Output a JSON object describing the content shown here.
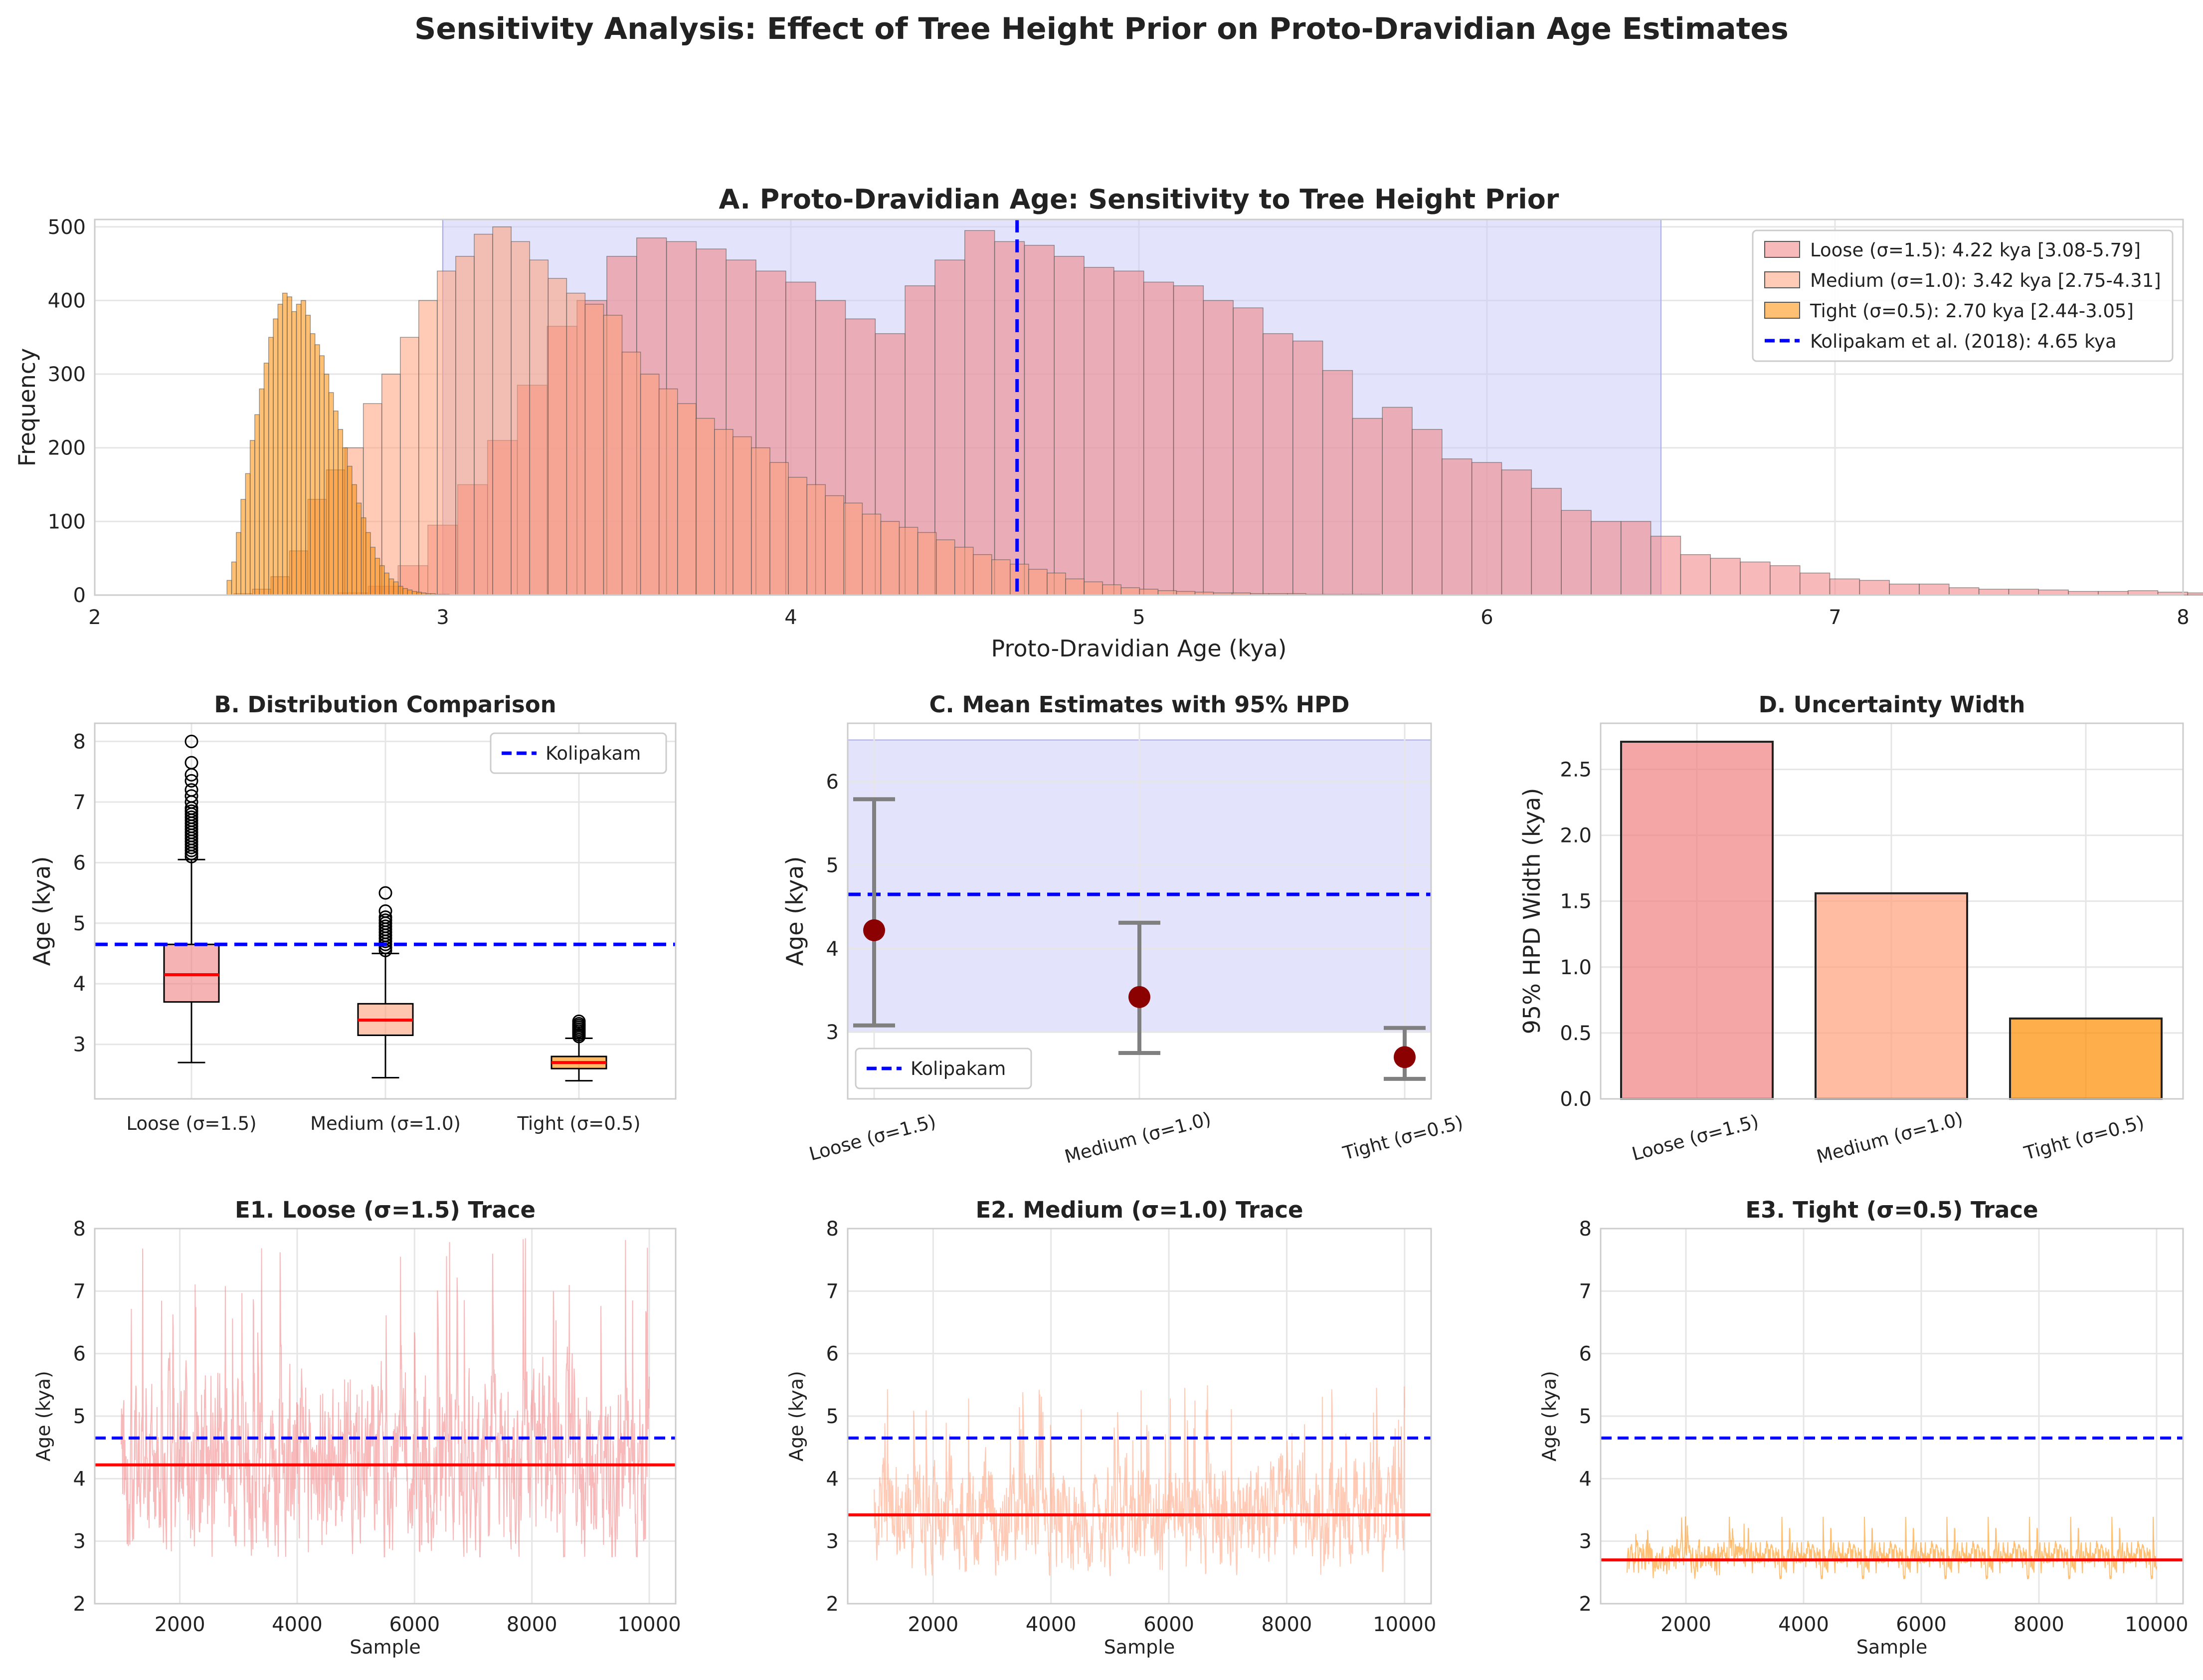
{
  "figure": {
    "suptitle": "Sensitivity Analysis: Effect of Tree Height Prior on Proto-Dravidian Age Estimates"
  },
  "colors": {
    "loose": "#f08080",
    "medium": "#ffa07a",
    "tight": "#ff8c00",
    "reference": "#0000ff",
    "mean_line": "#ff0000",
    "error_bar": "#808080",
    "marker": "#8b0000",
    "hpd_band": "#c8c8f8"
  },
  "chart_data": [
    {
      "id": "A",
      "type": "histogram",
      "title": "A. Proto-Dravidian Age: Sensitivity to Tree Height Prior",
      "xlabel": "Proto-Dravidian Age (kya)",
      "ylabel": "Frequency",
      "xlim": [
        2,
        8
      ],
      "ylim": [
        0,
        510
      ],
      "xticks": [
        "2",
        "3",
        "4",
        "5",
        "6",
        "7",
        "8"
      ],
      "yticks": [
        "0",
        "100",
        "200",
        "300",
        "400",
        "500"
      ],
      "hpd_band": [
        3.0,
        6.5
      ],
      "reference_line": 4.65,
      "legend_position": "top-right",
      "legend": [
        "Loose (σ=1.5): 4.22 kya [3.08-5.79]",
        "Medium (σ=1.0): 3.42 kya [2.75-4.31]",
        "Tight (σ=0.5): 2.70 kya [2.44-3.05]",
        "Kolipakam et al. (2018): 4.65 kya"
      ],
      "series": [
        {
          "name": "Loose (σ=1.5)",
          "bin_start": 2.7,
          "bin_width": 0.0857,
          "counts": [
            3,
            12,
            40,
            95,
            150,
            210,
            285,
            365,
            400,
            460,
            485,
            480,
            470,
            455,
            440,
            425,
            400,
            375,
            355,
            420,
            455,
            495,
            480,
            475,
            460,
            445,
            440,
            425,
            420,
            400,
            390,
            355,
            345,
            305,
            240,
            255,
            225,
            185,
            180,
            170,
            145,
            115,
            100,
            100,
            80,
            55,
            50,
            45,
            40,
            30,
            22,
            20,
            15,
            15,
            10,
            8,
            8,
            7,
            5,
            5,
            6,
            4,
            3,
            3,
            2,
            2,
            2,
            2,
            1,
            1
          ]
        },
        {
          "name": "Medium (σ=1.0)",
          "bin_start": 2.4,
          "bin_width": 0.0531,
          "counts": [
            2,
            8,
            25,
            60,
            130,
            170,
            200,
            260,
            300,
            350,
            400,
            440,
            460,
            490,
            500,
            480,
            455,
            430,
            410,
            395,
            380,
            330,
            300,
            280,
            260,
            240,
            225,
            215,
            200,
            180,
            160,
            150,
            135,
            125,
            110,
            100,
            92,
            85,
            75,
            65,
            55,
            48,
            42,
            35,
            30,
            22,
            18,
            14,
            10,
            8,
            6,
            5,
            4,
            3,
            3,
            2,
            2,
            2,
            1,
            1,
            1,
            1
          ]
        },
        {
          "name": "Tight (σ=0.5)",
          "bin_start": 2.38,
          "bin_width": 0.0133,
          "counts": [
            20,
            45,
            85,
            130,
            165,
            210,
            245,
            280,
            315,
            350,
            375,
            395,
            410,
            405,
            385,
            395,
            400,
            380,
            355,
            340,
            325,
            300,
            275,
            250,
            225,
            200,
            175,
            150,
            125,
            105,
            85,
            65,
            50,
            40,
            30,
            22,
            18,
            12,
            9,
            7,
            5,
            4,
            3,
            2,
            2,
            1,
            1,
            1
          ]
        }
      ]
    },
    {
      "id": "B",
      "type": "boxplot",
      "title": "B. Distribution Comparison",
      "ylabel": "Age (kya)",
      "categories": [
        "Loose (σ=1.5)",
        "Medium (σ=1.0)",
        "Tight (σ=0.5)"
      ],
      "ylim": [
        2.1,
        8.3
      ],
      "yticks": [
        "3",
        "4",
        "5",
        "6",
        "7",
        "8"
      ],
      "reference_line": 4.65,
      "legend": [
        "Kolipakam"
      ],
      "legend_position": "top-right",
      "boxes": [
        {
          "whisker_low": 2.7,
          "q1": 3.7,
          "median": 4.15,
          "q3": 4.65,
          "whisker_high": 6.05,
          "outliers": [
            6.1,
            6.15,
            6.2,
            6.25,
            6.3,
            6.35,
            6.4,
            6.45,
            6.5,
            6.55,
            6.6,
            6.65,
            6.7,
            6.75,
            6.8,
            6.85,
            6.9,
            7.0,
            7.1,
            7.2,
            7.35,
            7.45,
            7.65,
            8.0
          ]
        },
        {
          "whisker_low": 2.45,
          "q1": 3.15,
          "median": 3.4,
          "q3": 3.67,
          "whisker_high": 4.5,
          "outliers": [
            4.55,
            4.6,
            4.65,
            4.7,
            4.75,
            4.8,
            4.85,
            4.9,
            4.95,
            5.0,
            5.05,
            5.1,
            5.2,
            5.5
          ]
        },
        {
          "whisker_low": 2.4,
          "q1": 2.6,
          "median": 2.7,
          "q3": 2.8,
          "whisker_high": 3.1,
          "outliers": [
            3.13,
            3.16,
            3.19,
            3.22,
            3.25,
            3.28,
            3.31,
            3.34,
            3.38
          ]
        }
      ]
    },
    {
      "id": "C",
      "type": "errorbar",
      "title": "C. Mean Estimates with 95% HPD",
      "ylabel": "Age (kya)",
      "categories": [
        "Loose (σ=1.5)",
        "Medium (σ=1.0)",
        "Tight (σ=0.5)"
      ],
      "ylim": [
        2.2,
        6.7
      ],
      "yticks": [
        "3",
        "4",
        "5",
        "6"
      ],
      "means": [
        4.22,
        3.42,
        2.7
      ],
      "hpd_low": [
        3.08,
        2.75,
        2.44
      ],
      "hpd_high": [
        5.79,
        4.31,
        3.05
      ],
      "hpd_band": [
        3.0,
        6.5
      ],
      "reference_line": 4.65,
      "legend": [
        "Kolipakam"
      ],
      "legend_position": "bottom-left"
    },
    {
      "id": "D",
      "type": "bar",
      "title": "D. Uncertainty Width",
      "ylabel": "95% HPD Width (kya)",
      "categories": [
        "Loose (σ=1.5)",
        "Medium (σ=1.0)",
        "Tight (σ=0.5)"
      ],
      "values": [
        2.71,
        1.56,
        0.61
      ],
      "ylim": [
        0,
        2.85
      ],
      "yticks": [
        "0.0",
        "0.5",
        "1.0",
        "1.5",
        "2.0",
        "2.5"
      ]
    },
    {
      "id": "E1",
      "type": "line",
      "title": "E1. Loose (σ=1.5) Trace",
      "xlabel": "Sample",
      "ylabel": "Age (kya)",
      "xlim": [
        550,
        10450
      ],
      "ylim": [
        2,
        8
      ],
      "xticks": [
        "2000",
        "4000",
        "6000",
        "8000",
        "10000"
      ],
      "yticks": [
        "2",
        "3",
        "4",
        "5",
        "6",
        "7",
        "8"
      ],
      "x_range": [
        1000,
        10000
      ],
      "mean": 4.22,
      "reference_line": 4.65,
      "trace_low": 2.75,
      "trace_high": 7.9
    },
    {
      "id": "E2",
      "type": "line",
      "title": "E2. Medium (σ=1.0) Trace",
      "xlabel": "Sample",
      "ylabel": "Age (kya)",
      "xlim": [
        550,
        10450
      ],
      "ylim": [
        2,
        8
      ],
      "xticks": [
        "2000",
        "4000",
        "6000",
        "8000",
        "10000"
      ],
      "yticks": [
        "2",
        "3",
        "4",
        "5",
        "6",
        "7",
        "8"
      ],
      "x_range": [
        1000,
        10000
      ],
      "mean": 3.42,
      "reference_line": 4.65,
      "trace_low": 2.45,
      "trace_high": 5.5
    },
    {
      "id": "E3",
      "type": "line",
      "title": "E3. Tight (σ=0.5) Trace",
      "xlabel": "Sample",
      "ylabel": "Age (kya)",
      "xlim": [
        550,
        10450
      ],
      "ylim": [
        2,
        8
      ],
      "xticks": [
        "2000",
        "4000",
        "6000",
        "8000",
        "10000"
      ],
      "yticks": [
        "2",
        "3",
        "4",
        "5",
        "6",
        "7",
        "8"
      ],
      "x_range": [
        1000,
        10000
      ],
      "mean": 2.7,
      "reference_line": 4.65,
      "trace_low": 2.4,
      "trace_high": 3.4
    }
  ]
}
